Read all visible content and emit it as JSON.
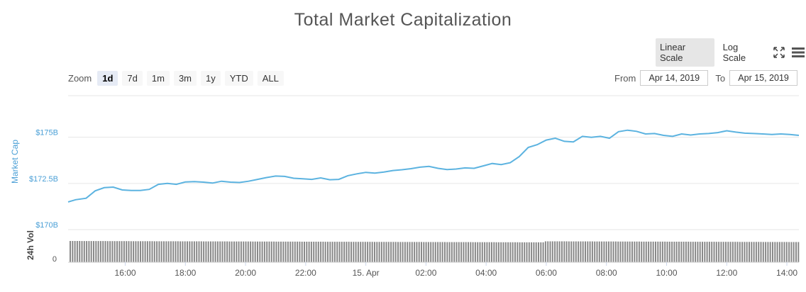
{
  "title": "Total Market Capitalization",
  "scale_buttons": {
    "linear": "Linear Scale",
    "log": "Log Scale",
    "active": "linear"
  },
  "icons": {
    "fullscreen": "fullscreen-icon",
    "menu": "hamburger-menu-icon"
  },
  "zoom": {
    "label": "Zoom",
    "buttons": [
      "1d",
      "7d",
      "1m",
      "3m",
      "1y",
      "YTD",
      "ALL"
    ],
    "active": "1d"
  },
  "range": {
    "from_label": "From",
    "from_value": "Apr 14, 2019",
    "to_label": "To",
    "to_value": "Apr 15, 2019"
  },
  "colors": {
    "line": "#5cb3e0",
    "volume": "#888888",
    "grid": "#e6e6e6",
    "axis_label": "#4a9fd6"
  },
  "chart_data": {
    "type": "line",
    "ylabel": "Market Cap",
    "vol_label": "24h Vol",
    "y_ticks": [
      "$170B",
      "$172.5B",
      "$175B"
    ],
    "y_tick_values": [
      170,
      172.5,
      175
    ],
    "ylim": [
      170,
      177.25
    ],
    "vol_tick": "0",
    "x_ticks": [
      "16:00",
      "18:00",
      "20:00",
      "22:00",
      "15. Apr",
      "02:00",
      "04:00",
      "06:00",
      "08:00",
      "10:00",
      "12:00",
      "14:00"
    ],
    "x_tick_hours": [
      16,
      18,
      20,
      22,
      24,
      26,
      28,
      30,
      32,
      34,
      36,
      38
    ],
    "x_range_hours": [
      14.1,
      38.4
    ],
    "grid": true,
    "series": [
      {
        "points": [
          [
            14.1,
            171.5
          ],
          [
            14.35,
            171.62
          ],
          [
            14.7,
            171.7
          ],
          [
            15.0,
            172.1
          ],
          [
            15.3,
            172.27
          ],
          [
            15.6,
            172.3
          ],
          [
            15.9,
            172.15
          ],
          [
            16.2,
            172.12
          ],
          [
            16.5,
            172.12
          ],
          [
            16.8,
            172.18
          ],
          [
            17.1,
            172.45
          ],
          [
            17.4,
            172.5
          ],
          [
            17.7,
            172.45
          ],
          [
            18.0,
            172.58
          ],
          [
            18.3,
            172.6
          ],
          [
            18.6,
            172.57
          ],
          [
            18.9,
            172.52
          ],
          [
            19.2,
            172.62
          ],
          [
            19.5,
            172.57
          ],
          [
            19.8,
            172.55
          ],
          [
            20.1,
            172.62
          ],
          [
            20.4,
            172.72
          ],
          [
            20.7,
            172.82
          ],
          [
            21.0,
            172.9
          ],
          [
            21.3,
            172.88
          ],
          [
            21.6,
            172.78
          ],
          [
            21.9,
            172.75
          ],
          [
            22.2,
            172.72
          ],
          [
            22.5,
            172.8
          ],
          [
            22.8,
            172.7
          ],
          [
            23.1,
            172.72
          ],
          [
            23.4,
            172.92
          ],
          [
            23.7,
            173.02
          ],
          [
            24.0,
            173.1
          ],
          [
            24.3,
            173.06
          ],
          [
            24.6,
            173.12
          ],
          [
            24.9,
            173.2
          ],
          [
            25.2,
            173.24
          ],
          [
            25.5,
            173.3
          ],
          [
            25.8,
            173.38
          ],
          [
            26.1,
            173.42
          ],
          [
            26.4,
            173.32
          ],
          [
            26.7,
            173.25
          ],
          [
            27.0,
            173.28
          ],
          [
            27.3,
            173.34
          ],
          [
            27.6,
            173.32
          ],
          [
            27.9,
            173.45
          ],
          [
            28.2,
            173.58
          ],
          [
            28.5,
            173.52
          ],
          [
            28.8,
            173.62
          ],
          [
            29.1,
            173.95
          ],
          [
            29.4,
            174.45
          ],
          [
            29.7,
            174.6
          ],
          [
            30.0,
            174.85
          ],
          [
            30.3,
            174.95
          ],
          [
            30.6,
            174.78
          ],
          [
            30.9,
            174.75
          ],
          [
            31.2,
            175.05
          ],
          [
            31.5,
            175.0
          ],
          [
            31.8,
            175.05
          ],
          [
            32.1,
            174.95
          ],
          [
            32.4,
            175.3
          ],
          [
            32.7,
            175.38
          ],
          [
            33.0,
            175.32
          ],
          [
            33.3,
            175.18
          ],
          [
            33.6,
            175.2
          ],
          [
            33.9,
            175.1
          ],
          [
            34.2,
            175.05
          ],
          [
            34.5,
            175.18
          ],
          [
            34.8,
            175.12
          ],
          [
            35.1,
            175.18
          ],
          [
            35.4,
            175.2
          ],
          [
            35.7,
            175.25
          ],
          [
            36.0,
            175.35
          ],
          [
            36.3,
            175.28
          ],
          [
            36.6,
            175.22
          ],
          [
            36.9,
            175.2
          ],
          [
            37.2,
            175.18
          ],
          [
            37.5,
            175.15
          ],
          [
            37.8,
            175.18
          ],
          [
            38.1,
            175.15
          ],
          [
            38.4,
            175.1
          ]
        ]
      }
    ]
  }
}
